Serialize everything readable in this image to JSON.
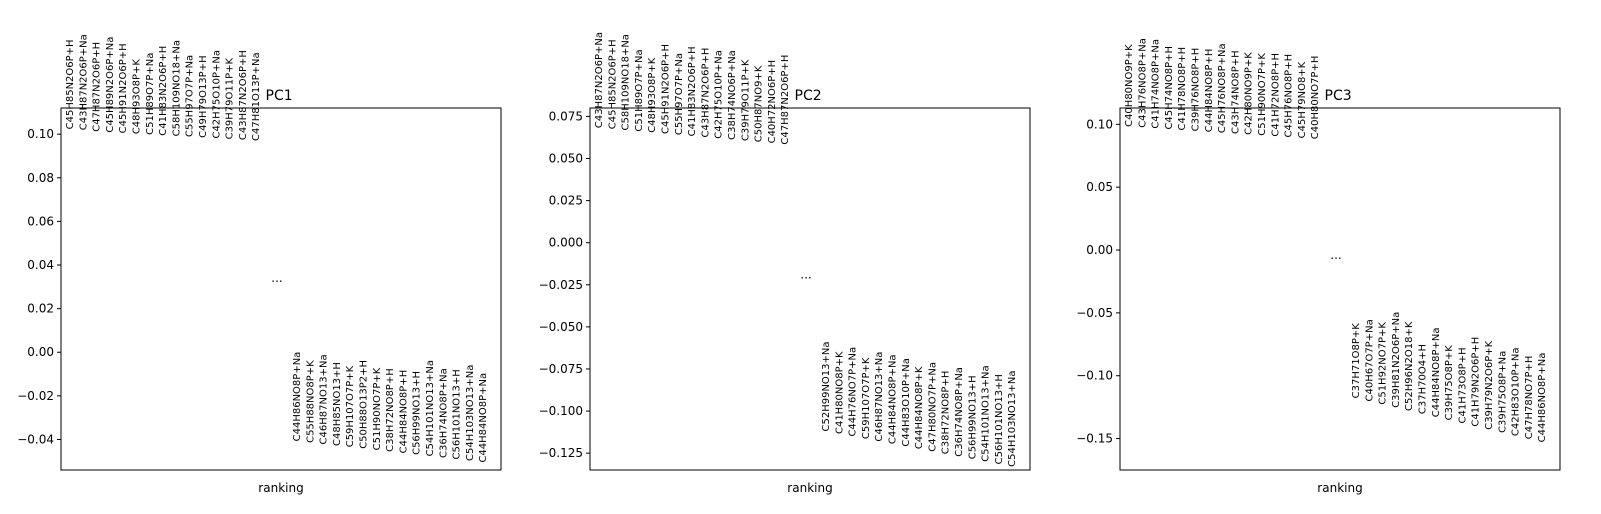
{
  "chart_data": [
    {
      "type": "scatter",
      "title": "PC1",
      "xlabel": "ranking",
      "ylim": [
        -0.054,
        0.112
      ],
      "yticks": [
        0.1,
        0.08,
        0.06,
        0.04,
        0.02,
        0.0,
        -0.02,
        -0.04
      ],
      "ytick_labels": [
        "0.10",
        "0.08",
        "0.06",
        "0.04",
        "0.02",
        "0.00",
        "−0.02",
        "−0.04"
      ],
      "gap_label": "...",
      "gap_value": 0.034,
      "top": [
        {
          "label": "C45H85N2O6P+H",
          "value": 0.1077
        },
        {
          "label": "C43H87N2O6P+Na",
          "value": 0.1073
        },
        {
          "label": "C47H87N2O6P+H",
          "value": 0.1066
        },
        {
          "label": "C45H89N2O6P+Na",
          "value": 0.1062
        },
        {
          "label": "C45H91N2O6P+H",
          "value": 0.1059
        },
        {
          "label": "C48H93O8P+K",
          "value": 0.1055
        },
        {
          "label": "C51H89O7P+Na",
          "value": 0.1052
        },
        {
          "label": "C41H83N2O6P+H",
          "value": 0.1048
        },
        {
          "label": "C58H109NO18+Na",
          "value": 0.1045
        },
        {
          "label": "C55H97O7P+Na",
          "value": 0.1042
        },
        {
          "label": "C49H79O13P+H",
          "value": 0.1038
        },
        {
          "label": "C42H75O10P+Na",
          "value": 0.1035
        },
        {
          "label": "C39H79O11P+K",
          "value": 0.1031
        },
        {
          "label": "C43H87N2O6P+H",
          "value": 0.1028
        },
        {
          "label": "C47H81O13P+Na",
          "value": 0.1024
        }
      ],
      "bottom": [
        {
          "label": "C44H86NO8P+Na",
          "value": -0.0207
        },
        {
          "label": "C55H88NO8P+K",
          "value": -0.0214
        },
        {
          "label": "C46H87NO13+Na",
          "value": -0.0221
        },
        {
          "label": "C48H85NO13+H",
          "value": -0.0228
        },
        {
          "label": "C59H107O7P+K",
          "value": -0.0234
        },
        {
          "label": "C50H88O13P2+H",
          "value": -0.0241
        },
        {
          "label": "C51H90NO7P+K",
          "value": -0.0248
        },
        {
          "label": "C38H72NO8P+H",
          "value": -0.0255
        },
        {
          "label": "C44H84NO8P+H",
          "value": -0.0262
        },
        {
          "label": "C56H99NO13+H",
          "value": -0.0269
        },
        {
          "label": "C54H101NO13+Na",
          "value": -0.0276
        },
        {
          "label": "C36H74NO8P+Na",
          "value": -0.0283
        },
        {
          "label": "C56H101NO13+H",
          "value": -0.029
        },
        {
          "label": "C54H103NO13+Na",
          "value": -0.0297
        },
        {
          "label": "C44H84NO8P+Na",
          "value": -0.0304
        }
      ]
    },
    {
      "type": "scatter",
      "title": "PC2",
      "xlabel": "ranking",
      "ylim": [
        -0.135,
        0.08
      ],
      "yticks": [
        0.075,
        0.05,
        0.025,
        0.0,
        -0.025,
        -0.05,
        -0.075,
        -0.1,
        -0.125
      ],
      "ytick_labels": [
        "0.075",
        "0.050",
        "0.025",
        "0.000",
        "−0.025",
        "−0.050",
        "−0.075",
        "−0.100",
        "−0.125"
      ],
      "gap_label": "...",
      "gap_value": -0.019,
      "top": [
        {
          "label": "C43H87N2O6P+Na",
          "value": 0.0752
        },
        {
          "label": "C45H85N2O6P+H",
          "value": 0.0745
        },
        {
          "label": "C58H109NO18+Na",
          "value": 0.0738
        },
        {
          "label": "C51H89O7P+Na",
          "value": 0.0731
        },
        {
          "label": "C48H93O8P+K",
          "value": 0.0724
        },
        {
          "label": "C45H91N2O6P+H",
          "value": 0.0717
        },
        {
          "label": "C55H97O7P+Na",
          "value": 0.071
        },
        {
          "label": "C41H83N2O6P+H",
          "value": 0.0703
        },
        {
          "label": "C43H87N2O6P+H",
          "value": 0.0696
        },
        {
          "label": "C42H75O10P+Na",
          "value": 0.0689
        },
        {
          "label": "C38H74NO6P+Na",
          "value": 0.0682
        },
        {
          "label": "C39H79O11P+K",
          "value": 0.0675
        },
        {
          "label": "C50H87NO9+K",
          "value": 0.0668
        },
        {
          "label": "C40H72NO6P+H",
          "value": 0.0661
        },
        {
          "label": "C47H87N2O6P+H",
          "value": 0.0654
        }
      ],
      "bottom": [
        {
          "label": "C52H99NO13+Na",
          "value": -0.086
        },
        {
          "label": "C41H80NO8P+K",
          "value": -0.0875
        },
        {
          "label": "C44H76NO7P+Na",
          "value": -0.089
        },
        {
          "label": "C59H107O7P+K",
          "value": -0.0905
        },
        {
          "label": "C46H87NO13+Na",
          "value": -0.092
        },
        {
          "label": "C44H84NO8P+Na",
          "value": -0.0935
        },
        {
          "label": "C44H83O10P+Na",
          "value": -0.095
        },
        {
          "label": "C44H84NO8P+K",
          "value": -0.0965
        },
        {
          "label": "C47H80NO7P+Na",
          "value": -0.098
        },
        {
          "label": "C38H72NO8P+H",
          "value": -0.0995
        },
        {
          "label": "C36H74NO8P+Na",
          "value": -0.101
        },
        {
          "label": "C56H99NO13+H",
          "value": -0.1025
        },
        {
          "label": "C54H101NO13+Na",
          "value": -0.104
        },
        {
          "label": "C56H101NO13+H",
          "value": -0.1055
        },
        {
          "label": "C54H103NO13+Na",
          "value": -0.107
        }
      ]
    },
    {
      "type": "scatter",
      "title": "PC3",
      "xlabel": "ranking",
      "ylim": [
        -0.175,
        0.113
      ],
      "yticks": [
        0.1,
        0.05,
        0.0,
        -0.05,
        -0.1,
        -0.15
      ],
      "ytick_labels": [
        "0.10",
        "0.05",
        "0.00",
        "−0.05",
        "−0.10",
        "−0.15"
      ],
      "gap_label": "...",
      "gap_value": -0.004,
      "top": [
        {
          "label": "C40H80NO9P+K",
          "value": 0.1075
        },
        {
          "label": "C43H76NO8P+Na",
          "value": 0.1068
        },
        {
          "label": "C41H74NO8P+Na",
          "value": 0.1061
        },
        {
          "label": "C45H74NO8P+H",
          "value": 0.1054
        },
        {
          "label": "C41H78NO8P+H",
          "value": 0.1047
        },
        {
          "label": "C39H76NO8P+H",
          "value": 0.104
        },
        {
          "label": "C44H84NO8P+H",
          "value": 0.1033
        },
        {
          "label": "C45H76NO8P+Na",
          "value": 0.1026
        },
        {
          "label": "C43H74NO8P+H",
          "value": 0.1019
        },
        {
          "label": "C42H80NO9P+K",
          "value": 0.1012
        },
        {
          "label": "C51H90NO7P+K",
          "value": 0.1005
        },
        {
          "label": "C41H72NO8P+H",
          "value": 0.0998
        },
        {
          "label": "C45H76NO8P+H",
          "value": 0.0991
        },
        {
          "label": "C45H79NO8+K",
          "value": 0.0984
        },
        {
          "label": "C40H80NO7P+H",
          "value": 0.0977
        }
      ],
      "bottom": [
        {
          "label": "C37H71O8P+K",
          "value": -0.083
        },
        {
          "label": "C40H67O7P+Na",
          "value": -0.0855
        },
        {
          "label": "C51H92NO7P+K",
          "value": -0.088
        },
        {
          "label": "C39H81N2O6P+Na",
          "value": -0.0905
        },
        {
          "label": "C52H96N2O18+K",
          "value": -0.093
        },
        {
          "label": "C37H70O4+H",
          "value": -0.0955
        },
        {
          "label": "C44H84NO8P+Na",
          "value": -0.098
        },
        {
          "label": "C39H75O8P+K",
          "value": -0.1005
        },
        {
          "label": "C41H73O8P+H",
          "value": -0.103
        },
        {
          "label": "C41H79N2O6P+H",
          "value": -0.1055
        },
        {
          "label": "C39H79N2O6P+K",
          "value": -0.108
        },
        {
          "label": "C39H75O8P+Na",
          "value": -0.1105
        },
        {
          "label": "C42H83O10P+Na",
          "value": -0.113
        },
        {
          "label": "C47H78NO7P+H",
          "value": -0.1155
        },
        {
          "label": "C44H86NO8P+Na",
          "value": -0.118
        }
      ]
    }
  ]
}
